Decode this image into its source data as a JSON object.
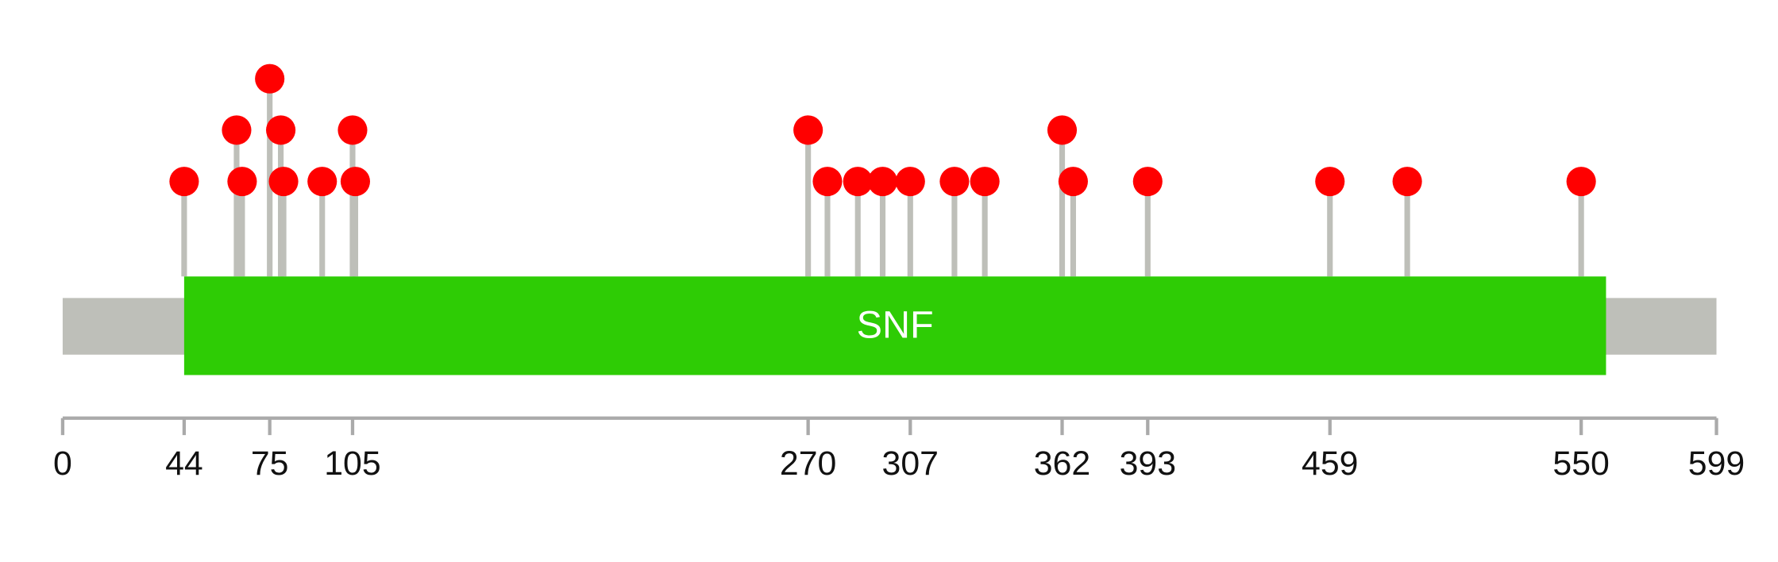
{
  "chart_data": {
    "type": "lollipop",
    "xlim": [
      0,
      599
    ],
    "xticks": [
      0,
      44,
      75,
      105,
      270,
      307,
      362,
      393,
      459,
      550,
      599
    ],
    "ylim": [
      0,
      3
    ],
    "domains": [
      {
        "name": "SNF",
        "start": 44,
        "end": 559,
        "color": "#2ecc05"
      }
    ],
    "backbone_color": "#bebfb9",
    "stem_color": "#bebfb9",
    "color": "#ff0000",
    "x": [
      44,
      63,
      65,
      75,
      79,
      80,
      94,
      105,
      106,
      270,
      277,
      288,
      297,
      307,
      323,
      334,
      362,
      366,
      393,
      459,
      487,
      550
    ],
    "values": [
      1,
      2,
      1,
      3,
      2,
      1,
      1,
      2,
      1,
      2,
      1,
      1,
      1,
      1,
      1,
      1,
      2,
      1,
      1,
      1,
      1,
      1
    ]
  }
}
